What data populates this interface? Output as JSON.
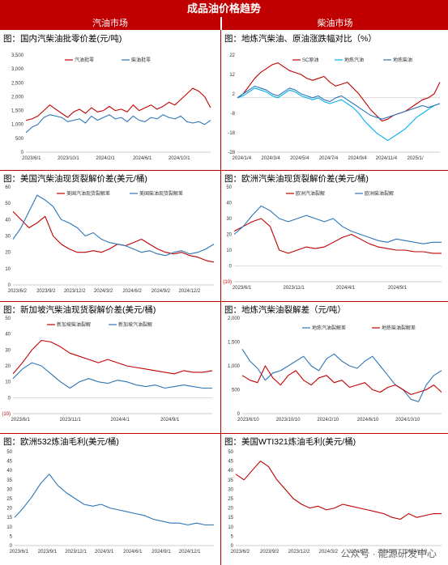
{
  "header": {
    "title": "成品油价格趋势",
    "left_section": "汽油市场",
    "right_section": "柴油市场"
  },
  "watermark": "公众号 · 能源研发中心",
  "chart_data": [
    {
      "id": "c1",
      "type": "line",
      "title": "图：国内汽柴油批零价差(元/吨)",
      "x_ticks": [
        "2023/6/1",
        "2023/10/1",
        "2024/2/1",
        "2024/6/1",
        "2024/10/1"
      ],
      "ylim": [
        0,
        3500
      ],
      "y_ticks": [
        "0",
        "500",
        "1,000",
        "1,500",
        "2,000",
        "2,500",
        "3,000",
        "3,500"
      ],
      "series": [
        {
          "name": "汽油批零",
          "color": "#c00000",
          "values": [
            1150,
            1200,
            1300,
            1500,
            1700,
            1550,
            1400,
            1250,
            1450,
            1550,
            1400,
            1600,
            1450,
            1500,
            1650,
            1500,
            1550,
            1450,
            1700,
            1500,
            1600,
            1700,
            1550,
            1650,
            1800,
            1700,
            1900,
            2100,
            2300,
            2200,
            2000,
            1600
          ]
        },
        {
          "name": "柴油批零",
          "color": "#2e75b6",
          "values": [
            700,
            900,
            1000,
            1250,
            1350,
            1300,
            1250,
            1100,
            1150,
            1200,
            1050,
            1300,
            1150,
            1250,
            1350,
            1200,
            1250,
            1100,
            1300,
            1150,
            1100,
            1250,
            1200,
            1350,
            1250,
            1200,
            1300,
            1100,
            1050,
            1100,
            1000,
            1150
          ]
        }
      ]
    },
    {
      "id": "c2",
      "type": "line",
      "title": "图：地炼汽柴油、原油涨跌幅对比（%）",
      "x_ticks": [
        "2024/1/4",
        "2024/3/4",
        "2024/5/4",
        "2024/7/4",
        "2024/9/4",
        "2024/11/4",
        "2025/1/"
      ],
      "ylim": [
        -28,
        22
      ],
      "y_ticks": [
        "-28",
        "-18",
        "-8",
        "2",
        "12",
        "22"
      ],
      "series": [
        {
          "name": "SC原油",
          "color": "#c00000",
          "values": [
            0,
            2,
            6,
            10,
            13,
            15,
            17,
            18,
            16,
            14,
            13,
            12,
            10,
            9,
            10,
            11,
            8,
            6,
            7,
            8,
            5,
            2,
            -2,
            -6,
            -9,
            -12,
            -11,
            -9,
            -8,
            -7,
            -5,
            -3,
            -1,
            0,
            2,
            8
          ]
        },
        {
          "name": "地炼汽油",
          "color": "#00b0f0",
          "values": [
            0,
            1,
            3,
            5,
            4,
            3,
            1,
            0,
            2,
            4,
            3,
            1,
            0,
            -1,
            0,
            -2,
            -3,
            -2,
            -1,
            -3,
            -5,
            -8,
            -12,
            -15,
            -18,
            -20,
            -22,
            -20,
            -18,
            -16,
            -13,
            -10,
            -8,
            -6,
            -4,
            -3
          ]
        },
        {
          "name": "地炼柴油",
          "color": "#2e75b6",
          "values": [
            0,
            2,
            4,
            6,
            5,
            4,
            2,
            1,
            3,
            5,
            4,
            2,
            1,
            0,
            1,
            -1,
            -2,
            0,
            1,
            -1,
            -3,
            -5,
            -7,
            -9,
            -10,
            -11,
            -10,
            -9,
            -8,
            -7,
            -6,
            -5,
            -4,
            -5,
            -4,
            -3
          ]
        }
      ]
    },
    {
      "id": "c3",
      "type": "line",
      "title": "图：美国汽柴油现货裂解价差(美元/桶)",
      "x_ticks": [
        "2023/6/2",
        "2023/9/2",
        "2023/12/2",
        "2024/3/2",
        "2024/6/2",
        "2024/9/2",
        "2024/12/2"
      ],
      "ylim": [
        0,
        60
      ],
      "y_ticks": [
        "0",
        "10",
        "20",
        "30",
        "40",
        "50",
        "60"
      ],
      "series": [
        {
          "name": "美国汽油现货裂解差",
          "color": "#c00000",
          "values": [
            45,
            40,
            35,
            38,
            42,
            30,
            25,
            22,
            20,
            20,
            21,
            20,
            22,
            25,
            24,
            26,
            28,
            25,
            22,
            20,
            19,
            20,
            18,
            17,
            15,
            14
          ]
        },
        {
          "name": "美国柴油现货裂解差",
          "color": "#2e75b6",
          "values": [
            28,
            35,
            45,
            55,
            52,
            48,
            40,
            38,
            35,
            30,
            32,
            28,
            26,
            25,
            24,
            22,
            20,
            21,
            19,
            18,
            20,
            21,
            19,
            20,
            22,
            25
          ]
        }
      ]
    },
    {
      "id": "c4",
      "type": "line",
      "title": "图：欧洲汽柴油现货裂解价差(美元/桶)",
      "x_ticks": [
        "2023/6/1",
        "2023/11/1",
        "2024/4/1",
        "2024/9/1"
      ],
      "ylim": [
        -10,
        50
      ],
      "y_ticks": [
        "(10)",
        "0",
        "10",
        "20",
        "30",
        "40",
        "50"
      ],
      "series": [
        {
          "name": "欧洲汽油裂解",
          "color": "#c00000",
          "values": [
            22,
            25,
            28,
            30,
            25,
            10,
            8,
            10,
            12,
            11,
            12,
            15,
            18,
            20,
            17,
            14,
            12,
            11,
            10,
            10,
            9,
            9,
            8,
            8
          ]
        },
        {
          "name": "欧洲柴油裂解",
          "color": "#2e75b6",
          "values": [
            20,
            25,
            32,
            38,
            35,
            30,
            28,
            30,
            32,
            30,
            28,
            30,
            25,
            22,
            20,
            18,
            16,
            15,
            17,
            16,
            15,
            14,
            15,
            15
          ]
        }
      ]
    },
    {
      "id": "c5",
      "type": "line",
      "title": "图：新加坡汽柴油现货裂解价差(美元/桶)",
      "x_ticks": [
        "2023/6/1",
        "2023/11/1",
        "2024/4/1",
        "2024/9/1"
      ],
      "ylim": [
        -10,
        50
      ],
      "y_ticks": [
        "(10)",
        "0",
        "10",
        "20",
        "30",
        "40",
        "50"
      ],
      "series": [
        {
          "name": "新加坡柴油裂解",
          "color": "#c00000",
          "values": [
            15,
            22,
            30,
            36,
            35,
            32,
            28,
            26,
            24,
            22,
            24,
            22,
            20,
            19,
            18,
            17,
            16,
            15,
            17,
            16,
            16,
            17
          ]
        },
        {
          "name": "新加坡汽油裂解",
          "color": "#2e75b6",
          "values": [
            12,
            18,
            22,
            20,
            15,
            10,
            6,
            10,
            12,
            10,
            9,
            11,
            10,
            8,
            7,
            8,
            6,
            7,
            8,
            7,
            6,
            6
          ]
        }
      ]
    },
    {
      "id": "c6",
      "type": "line",
      "title": "图：地炼汽柴油裂解差（元/吨）",
      "x_ticks": [
        "2023/6/10",
        "2023/10/10",
        "2024/2/10",
        "2024/6/10",
        "2024/10/10"
      ],
      "ylim": [
        0,
        2000
      ],
      "y_ticks": [
        "0",
        "500",
        "1,000",
        "1,500",
        "2,000"
      ],
      "series": [
        {
          "name": "地炼汽油裂解差",
          "color": "#2e75b6",
          "values": [
            1350,
            1100,
            950,
            700,
            850,
            900,
            1000,
            1100,
            1200,
            1000,
            900,
            1150,
            1250,
            1100,
            1000,
            950,
            1100,
            1200,
            1000,
            800,
            600,
            500,
            300,
            250,
            600,
            800,
            900
          ]
        },
        {
          "name": "地炼柴油裂解差",
          "color": "#c00000",
          "values": [
            800,
            700,
            650,
            1000,
            750,
            600,
            800,
            900,
            700,
            600,
            750,
            800,
            650,
            700,
            550,
            600,
            650,
            500,
            450,
            550,
            600,
            500,
            400,
            450,
            500,
            600,
            450
          ]
        }
      ]
    },
    {
      "id": "c7",
      "type": "line",
      "title": "图：欧洲532炼油毛利(美元/桶)",
      "x_ticks": [
        "2023/6/1",
        "2023/9/1",
        "2023/12/1",
        "2024/3/1",
        "2024/6/1",
        "2024/9/1",
        "2024/12/1"
      ],
      "ylim": [
        0,
        50
      ],
      "y_ticks": [
        "0",
        "5",
        "10",
        "15",
        "20",
        "25",
        "30",
        "35",
        "40",
        "45",
        "50"
      ],
      "series": [
        {
          "name": "欧洲532炼油毛利",
          "color": "#2e75b6",
          "values": [
            15,
            20,
            26,
            33,
            38,
            32,
            28,
            25,
            22,
            21,
            22,
            20,
            19,
            18,
            17,
            16,
            14,
            13,
            12,
            12,
            11,
            12,
            11,
            11
          ]
        }
      ]
    },
    {
      "id": "c8",
      "type": "line",
      "title": "图：美国WTI321炼油毛利(美元/桶)",
      "x_ticks": [
        "2023/6/2",
        "2023/9/2",
        "2023/12/2",
        "2024/3/2",
        "2024/6/2",
        "2024/9/2",
        "2024/12/2"
      ],
      "ylim": [
        0,
        50
      ],
      "y_ticks": [
        "0",
        "5",
        "10",
        "15",
        "20",
        "25",
        "30",
        "35",
        "40",
        "45",
        "50"
      ],
      "series": [
        {
          "name": "美国WTI321炼油毛利",
          "color": "#c00000",
          "values": [
            38,
            35,
            40,
            45,
            42,
            35,
            30,
            25,
            22,
            20,
            21,
            19,
            20,
            22,
            21,
            20,
            19,
            18,
            17,
            15,
            14,
            17,
            15,
            16,
            17,
            17
          ]
        }
      ]
    }
  ]
}
